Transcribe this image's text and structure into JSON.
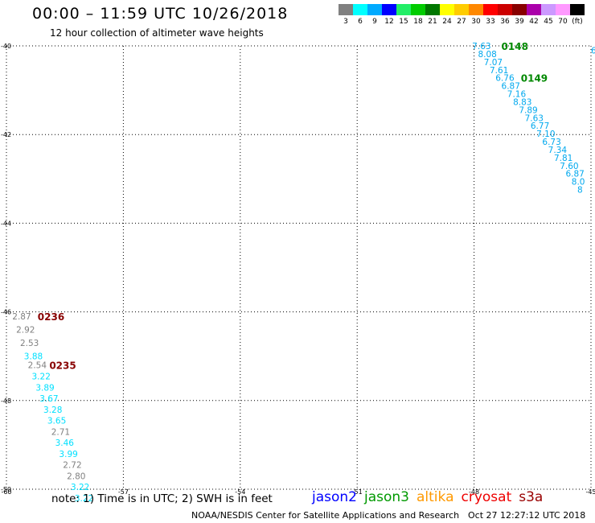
{
  "header": {
    "title": "00:00 – 11:59 UTC 10/26/2018",
    "subtitle": "12 hour collection of altimeter wave heights"
  },
  "legend": {
    "units": "(ft)",
    "bins": [
      {
        "label": "3",
        "color": "#808080"
      },
      {
        "label": "6",
        "color": "#00ffff"
      },
      {
        "label": "9",
        "color": "#00aaff"
      },
      {
        "label": "12",
        "color": "#0000ff"
      },
      {
        "label": "15",
        "color": "#22ee66"
      },
      {
        "label": "18",
        "color": "#00cc00"
      },
      {
        "label": "21",
        "color": "#007700"
      },
      {
        "label": "24",
        "color": "#ffff00"
      },
      {
        "label": "27",
        "color": "#ffcc00"
      },
      {
        "label": "30",
        "color": "#ff8800"
      },
      {
        "label": "33",
        "color": "#ff0000"
      },
      {
        "label": "36",
        "color": "#cc0000"
      },
      {
        "label": "39",
        "color": "#880000"
      },
      {
        "label": "42",
        "color": "#aa00aa"
      },
      {
        "label": "45",
        "color": "#cc99ff"
      },
      {
        "label": "70",
        "color": "#ff99ff"
      },
      {
        "label": "",
        "color": "#000000"
      }
    ]
  },
  "map": {
    "lon_range": [
      -60,
      -45
    ],
    "lat_range": [
      -50,
      -40
    ],
    "lon_ticks": [
      "-60",
      "-57",
      "-54",
      "-51",
      "-48",
      "-45"
    ],
    "lat_ticks": [
      "-40",
      "-42",
      "-44",
      "-46",
      "-48",
      "-50"
    ],
    "grid": "dotted",
    "colors": {
      "grey": "#808080",
      "cyan": "#00e0ff",
      "lightblue": "#00a8ee",
      "green": "#008800",
      "darkred": "#880000"
    },
    "tracks": [
      {
        "pass": "0148",
        "pass_lon": -47.3,
        "pass_lat": -40.0,
        "pass_color": "#008800",
        "points": [
          {
            "v": "7.63",
            "lon": -48.05,
            "lat": -40.0,
            "c": "#00a8ee"
          },
          {
            "v": "8.08",
            "lon": -47.9,
            "lat": -40.18,
            "c": "#00a8ee"
          },
          {
            "v": "7.07",
            "lon": -47.75,
            "lat": -40.36,
            "c": "#00a8ee"
          },
          {
            "v": "7.61",
            "lon": -47.6,
            "lat": -40.54,
            "c": "#00a8ee"
          },
          {
            "v": "6.76",
            "lon": -47.45,
            "lat": -40.72,
            "c": "#00a8ee"
          },
          {
            "v": "6.87",
            "lon": -47.3,
            "lat": -40.9,
            "c": "#00a8ee"
          },
          {
            "v": "7.16",
            "lon": -47.15,
            "lat": -41.08,
            "c": "#00a8ee"
          },
          {
            "v": "8.83",
            "lon": -47.0,
            "lat": -41.26,
            "c": "#00a8ee"
          },
          {
            "v": "7.89",
            "lon": -46.85,
            "lat": -41.44,
            "c": "#00a8ee"
          },
          {
            "v": "7.63",
            "lon": -46.7,
            "lat": -41.62,
            "c": "#00a8ee"
          },
          {
            "v": "6.77",
            "lon": -46.55,
            "lat": -41.8,
            "c": "#00a8ee"
          },
          {
            "v": "7.10",
            "lon": -46.4,
            "lat": -41.98,
            "c": "#00a8ee"
          },
          {
            "v": "6.73",
            "lon": -46.25,
            "lat": -42.16,
            "c": "#00a8ee"
          },
          {
            "v": "7.34",
            "lon": -46.1,
            "lat": -42.34,
            "c": "#00a8ee"
          },
          {
            "v": "7.81",
            "lon": -45.95,
            "lat": -42.52,
            "c": "#00a8ee"
          },
          {
            "v": "7.60",
            "lon": -45.8,
            "lat": -42.7,
            "c": "#00a8ee"
          },
          {
            "v": "6.87",
            "lon": -45.65,
            "lat": -42.88,
            "c": "#00a8ee"
          },
          {
            "v": "8.0",
            "lon": -45.5,
            "lat": -43.06,
            "c": "#00a8ee"
          },
          {
            "v": "8",
            "lon": -45.35,
            "lat": -43.24,
            "c": "#00a8ee"
          }
        ]
      },
      {
        "pass": "0149",
        "pass_lon": -46.8,
        "pass_lat": -40.72,
        "pass_color": "#008800",
        "points": [
          {
            "v": "6",
            "lon": -45.0,
            "lat": -40.1,
            "c": "#00a8ee"
          }
        ]
      },
      {
        "pass": "0236",
        "pass_lon": -59.2,
        "pass_lat": -46.1,
        "pass_color": "#880000",
        "points": [
          {
            "v": "2.87",
            "lon": -59.85,
            "lat": -46.1,
            "c": "#808080"
          },
          {
            "v": "2.92",
            "lon": -59.75,
            "lat": -46.4,
            "c": "#808080"
          },
          {
            "v": "2.53",
            "lon": -59.65,
            "lat": -46.7,
            "c": "#808080"
          },
          {
            "v": "3.88",
            "lon": -59.55,
            "lat": -47.0,
            "c": "#00e0ff"
          },
          {
            "v": "2.54",
            "lon": -59.45,
            "lat": -47.2,
            "c": "#808080"
          },
          {
            "v": "3.22",
            "lon": -59.35,
            "lat": -47.45,
            "c": "#00e0ff"
          },
          {
            "v": "3.89",
            "lon": -59.25,
            "lat": -47.7,
            "c": "#00e0ff"
          },
          {
            "v": "3.67",
            "lon": -59.15,
            "lat": -47.95,
            "c": "#00e0ff"
          },
          {
            "v": "3.28",
            "lon": -59.05,
            "lat": -48.2,
            "c": "#00e0ff"
          },
          {
            "v": "3.65",
            "lon": -58.95,
            "lat": -48.45,
            "c": "#00e0ff"
          },
          {
            "v": "2.71",
            "lon": -58.85,
            "lat": -48.7,
            "c": "#808080"
          },
          {
            "v": "3.46",
            "lon": -58.75,
            "lat": -48.95,
            "c": "#00e0ff"
          },
          {
            "v": "3.99",
            "lon": -58.65,
            "lat": -49.2,
            "c": "#00e0ff"
          },
          {
            "v": "2.72",
            "lon": -58.55,
            "lat": -49.45,
            "c": "#808080"
          },
          {
            "v": "2.80",
            "lon": -58.45,
            "lat": -49.7,
            "c": "#808080"
          },
          {
            "v": "3.22",
            "lon": -58.35,
            "lat": -49.95,
            "c": "#00e0ff"
          },
          {
            "v": "3.22",
            "lon": -58.25,
            "lat": -50.2,
            "c": "#00e0ff"
          }
        ]
      },
      {
        "pass": "0235",
        "pass_lon": -58.9,
        "pass_lat": -47.2,
        "pass_color": "#880000",
        "points": []
      }
    ]
  },
  "footer": {
    "note": "note:  1) Time is in UTC;  2) SWH is in feet",
    "satellites": [
      {
        "name": "jason2",
        "color": "#0000ff"
      },
      {
        "name": "jason3",
        "color": "#009900"
      },
      {
        "name": "altika",
        "color": "#ff9900"
      },
      {
        "name": "cryosat",
        "color": "#ee0000"
      },
      {
        "name": "s3a",
        "color": "#990000"
      }
    ],
    "credit": "NOAA/NESDIS Center for Satellite Applications and Research",
    "timestamp": "Oct 27 12:27:12 UTC 2018"
  }
}
